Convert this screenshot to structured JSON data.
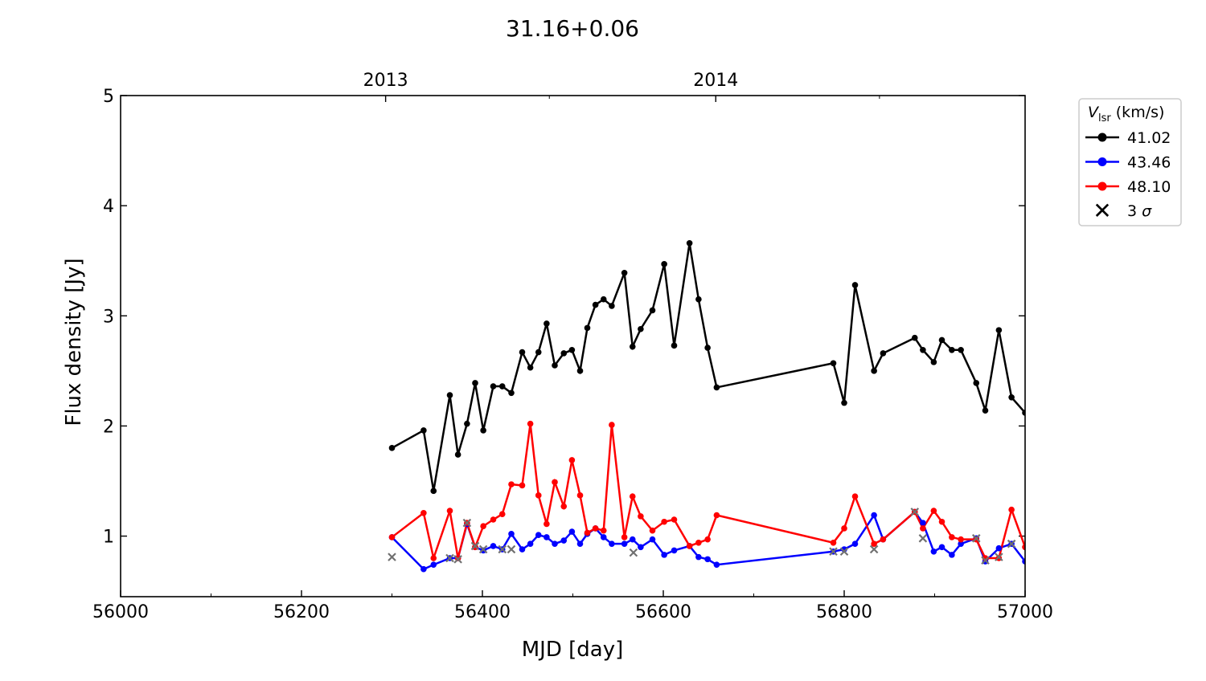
{
  "chart_data": {
    "type": "line",
    "title": "31.16+0.06",
    "xlabel": "MJD [day]",
    "ylabel": "Flux density [Jy]",
    "xlim": [
      56000,
      57000
    ],
    "ylim": [
      0.45,
      5
    ],
    "xticks": [
      56000,
      56200,
      56400,
      56600,
      56800,
      57000
    ],
    "xminor": [
      56100,
      56300,
      56500,
      56700,
      56900
    ],
    "yticks": [
      1,
      2,
      3,
      4,
      5
    ],
    "top_axis": {
      "ticks": [
        {
          "value": 56293,
          "label": "2013"
        },
        {
          "value": 56658,
          "label": "2014"
        }
      ],
      "minor": [
        56474,
        56839
      ]
    },
    "legend": {
      "title_main": "V",
      "title_sub": "lsr",
      "title_unit": " (km/s)",
      "placement": "outside-right-top"
    },
    "x": [
      56300,
      56335,
      56346,
      56364,
      56373,
      56383,
      56392,
      56401,
      56412,
      56422,
      56432,
      56444,
      56453,
      56462,
      56471,
      56480,
      56490,
      56499,
      56508,
      56516,
      56525,
      56534,
      56543,
      56557,
      56566,
      56575,
      56588,
      56601,
      56612,
      56629,
      56639,
      56649,
      56659,
      56788,
      56800,
      56812,
      56833,
      56843,
      56878,
      56887,
      56899,
      56908,
      56919,
      56929,
      56946,
      56956,
      56971,
      56985,
      57000
    ],
    "series": [
      {
        "name": "41.02",
        "color": "#000000",
        "values": [
          1.8,
          1.96,
          1.41,
          2.28,
          1.74,
          2.02,
          2.39,
          1.96,
          2.36,
          2.36,
          2.3,
          2.67,
          2.53,
          2.67,
          2.93,
          2.55,
          2.66,
          2.69,
          2.5,
          2.89,
          3.1,
          3.15,
          3.09,
          3.39,
          2.72,
          2.88,
          3.05,
          3.47,
          2.73,
          3.66,
          3.15,
          2.71,
          2.35,
          2.57,
          2.21,
          3.28,
          2.5,
          2.66,
          2.8,
          2.69,
          2.58,
          2.78,
          2.69,
          2.69,
          2.39,
          2.14,
          2.87,
          2.26,
          2.12
        ]
      },
      {
        "name": "43.46",
        "color": "#0000ff",
        "values": [
          0.99,
          0.7,
          0.74,
          0.8,
          0.8,
          1.11,
          0.9,
          0.87,
          0.91,
          0.88,
          1.02,
          0.88,
          0.93,
          1.01,
          0.99,
          0.93,
          0.96,
          1.04,
          0.93,
          1.02,
          1.07,
          0.99,
          0.93,
          0.93,
          0.97,
          0.9,
          0.97,
          0.83,
          0.87,
          0.91,
          0.81,
          0.79,
          0.74,
          0.86,
          0.88,
          0.93,
          1.19,
          0.97,
          1.22,
          1.12,
          0.86,
          0.9,
          0.83,
          0.93,
          0.98,
          0.77,
          0.89,
          0.93,
          0.77
        ]
      },
      {
        "name": "48.10",
        "color": "#ff0000",
        "values": [
          0.99,
          1.21,
          0.8,
          1.23,
          0.8,
          1.12,
          0.9,
          1.09,
          1.15,
          1.2,
          1.47,
          1.46,
          2.02,
          1.37,
          1.11,
          1.49,
          1.27,
          1.69,
          1.37,
          1.03,
          1.07,
          1.05,
          2.01,
          0.99,
          1.36,
          1.18,
          1.05,
          1.13,
          1.15,
          0.91,
          0.94,
          0.97,
          1.19,
          0.94,
          1.07,
          1.36,
          0.93,
          0.97,
          1.22,
          1.07,
          1.23,
          1.13,
          0.99,
          0.97,
          0.97,
          0.8,
          0.8,
          1.24,
          0.9
        ]
      }
    ],
    "sigma3": {
      "name": "3 σ",
      "label_num": "3",
      "label_sym": "σ",
      "color": "#707070",
      "x": [
        56300,
        56364,
        56373,
        56383,
        56392,
        56401,
        56422,
        56432,
        56567,
        56788,
        56800,
        56833,
        56878,
        56887,
        56946,
        56956,
        56971,
        56985
      ],
      "values": [
        0.81,
        0.8,
        0.79,
        1.12,
        0.91,
        0.88,
        0.88,
        0.88,
        0.85,
        0.86,
        0.86,
        0.88,
        1.22,
        0.98,
        0.98,
        0.78,
        0.81,
        0.93
      ]
    }
  }
}
